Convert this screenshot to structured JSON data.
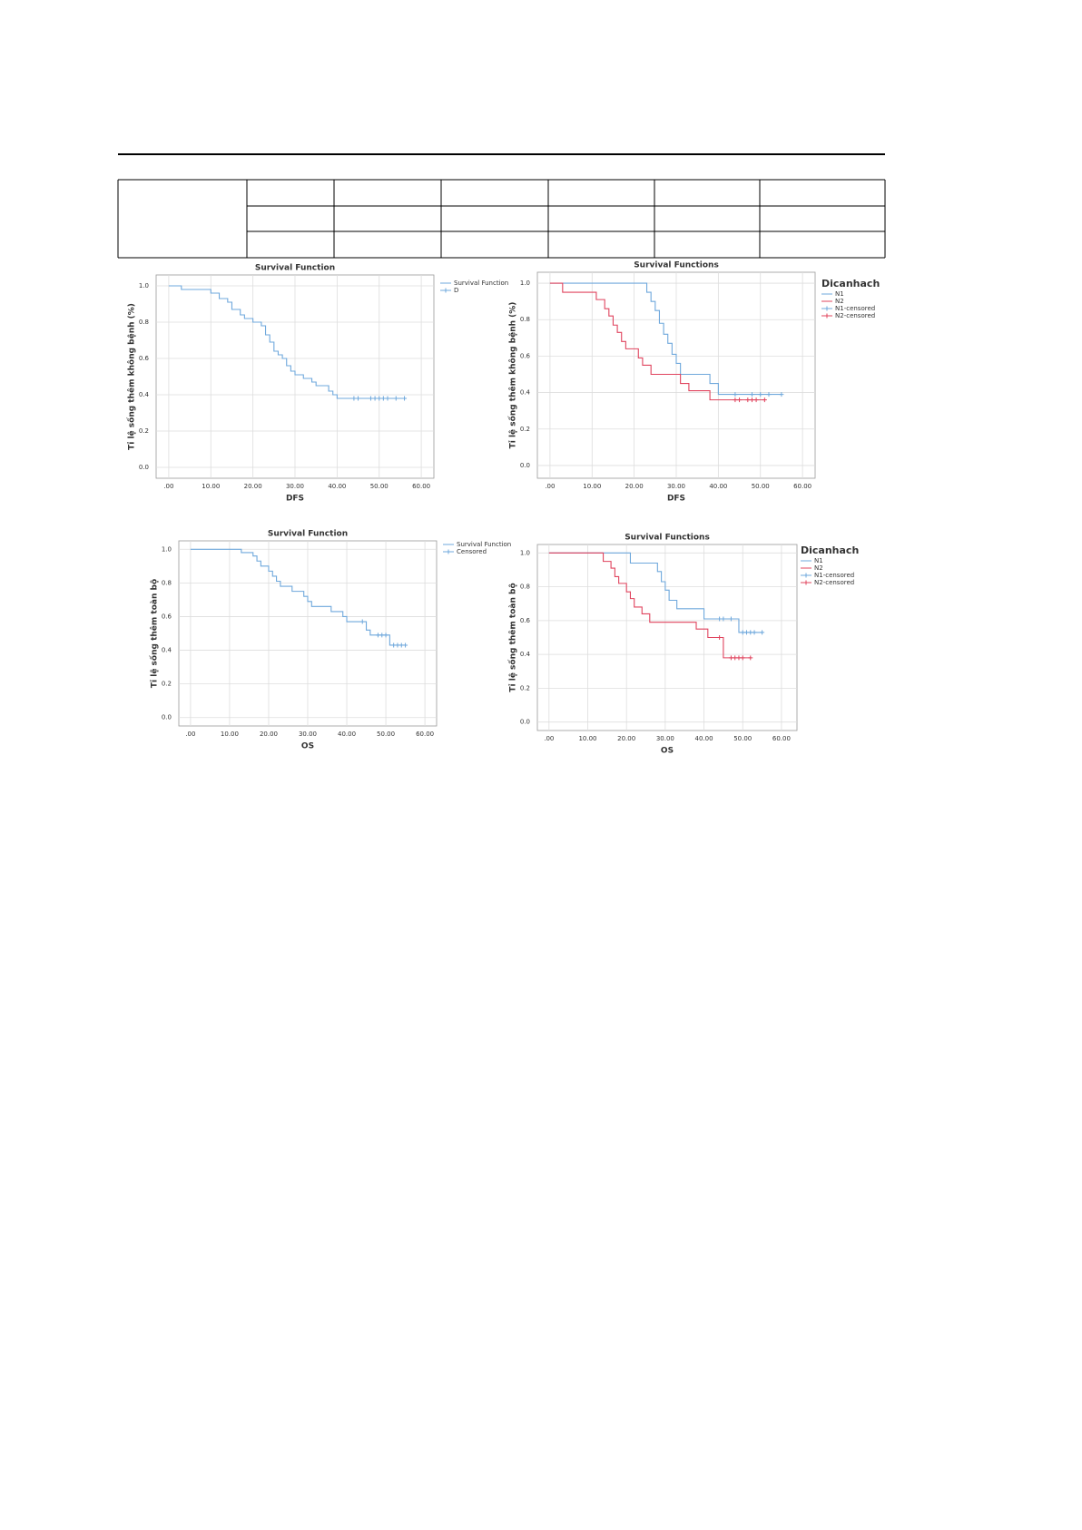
{
  "chart_data": [
    {
      "type": "line",
      "title": "Survival Function",
      "x_label": "DFS",
      "y_label": "Tỉ lệ sống thêm không bệnh (%)",
      "xlim": [
        -3,
        63
      ],
      "ylim": [
        -0.06,
        1.06
      ],
      "grid": true,
      "xticks": [
        {
          "value": 0,
          "label": ".00"
        },
        {
          "value": 10,
          "label": "10.00"
        },
        {
          "value": 20,
          "label": "20.00"
        },
        {
          "value": 30,
          "label": "30.00"
        },
        {
          "value": 40,
          "label": "40.00"
        },
        {
          "value": 50,
          "label": "50.00"
        },
        {
          "value": 60,
          "label": "60.00"
        }
      ],
      "yticks": [
        {
          "value": 0,
          "label": "0.0"
        },
        0.2,
        0.4,
        0.6,
        0.8,
        {
          "value": 1,
          "label": "1.0"
        }
      ],
      "series": [
        {
          "name": "Survival Function",
          "color": "#6fa8dc",
          "style": "step",
          "x": [
            0,
            3,
            10,
            12,
            14,
            15,
            17,
            18,
            20,
            22,
            23,
            24,
            25,
            26,
            27,
            28,
            29,
            30,
            32,
            34,
            35,
            38,
            39,
            40,
            56
          ],
          "values": [
            1,
            0.98,
            0.96,
            0.93,
            0.91,
            0.87,
            0.84,
            0.82,
            0.8,
            0.78,
            0.73,
            0.69,
            0.64,
            0.62,
            0.6,
            0.56,
            0.53,
            0.51,
            0.49,
            0.47,
            0.45,
            0.42,
            0.4,
            0.38,
            0.38
          ]
        },
        {
          "name": "D",
          "color": "#6fa8dc",
          "style": "censored",
          "x": [
            44,
            45,
            48,
            49,
            50,
            51,
            52,
            54,
            56
          ],
          "values": [
            0.38,
            0.38,
            0.38,
            0.38,
            0.38,
            0.38,
            0.38,
            0.38,
            0.38
          ]
        }
      ]
    },
    {
      "type": "line",
      "title": "Survival Functions",
      "x_label": "DFS",
      "y_label": "Tỉ lệ sống thêm không bệnh (%)",
      "legend_title": "Dicanhach",
      "xlim": [
        -3,
        63
      ],
      "ylim": [
        -0.07,
        1.06
      ],
      "grid": true,
      "xticks": [
        {
          "value": 0,
          "label": ".00"
        },
        {
          "value": 10,
          "label": "10.00"
        },
        {
          "value": 20,
          "label": "20.00"
        },
        {
          "value": 30,
          "label": "30.00"
        },
        {
          "value": 40,
          "label": "40.00"
        },
        {
          "value": 50,
          "label": "50.00"
        },
        {
          "value": 60,
          "label": "60.00"
        }
      ],
      "yticks": [
        {
          "value": 0,
          "label": "0.0"
        },
        0.2,
        0.4,
        0.6,
        0.8,
        {
          "value": 1,
          "label": "1.0"
        }
      ],
      "series": [
        {
          "name": "N1",
          "color": "#6fa8dc",
          "style": "step",
          "x": [
            0,
            23,
            24,
            25,
            26,
            27,
            28,
            29,
            30,
            31,
            38,
            40,
            55
          ],
          "values": [
            1,
            0.95,
            0.9,
            0.85,
            0.78,
            0.72,
            0.67,
            0.61,
            0.56,
            0.5,
            0.45,
            0.39,
            0.39
          ]
        },
        {
          "name": "N2",
          "color": "#e0445e",
          "style": "step",
          "x": [
            0,
            3,
            11,
            13,
            14,
            15,
            16,
            17,
            18,
            21,
            22,
            24,
            31,
            33,
            38,
            51
          ],
          "values": [
            1,
            0.95,
            0.91,
            0.86,
            0.82,
            0.77,
            0.73,
            0.68,
            0.64,
            0.59,
            0.55,
            0.5,
            0.45,
            0.41,
            0.36,
            0.36
          ]
        },
        {
          "name": "N1-censored",
          "color": "#6fa8dc",
          "style": "censored",
          "x": [
            44,
            48,
            50,
            52,
            55
          ],
          "values": [
            0.39,
            0.39,
            0.39,
            0.39,
            0.39
          ]
        },
        {
          "name": "N2-censored",
          "color": "#e0445e",
          "style": "censored",
          "x": [
            44,
            45,
            47,
            48,
            49,
            51
          ],
          "values": [
            0.36,
            0.36,
            0.36,
            0.36,
            0.36,
            0.36
          ]
        }
      ]
    },
    {
      "type": "line",
      "title": "Survival Function",
      "x_label": "OS",
      "y_label": "Tỉ lệ sống thêm toàn bộ",
      "xlim": [
        -3,
        63
      ],
      "ylim": [
        -0.05,
        1.05
      ],
      "grid": true,
      "xticks": [
        {
          "value": 0,
          "label": ".00"
        },
        {
          "value": 10,
          "label": "10.00"
        },
        {
          "value": 20,
          "label": "20.00"
        },
        {
          "value": 30,
          "label": "30.00"
        },
        {
          "value": 40,
          "label": "40.00"
        },
        {
          "value": 50,
          "label": "50.00"
        },
        {
          "value": 60,
          "label": "60.00"
        }
      ],
      "yticks": [
        {
          "value": 0,
          "label": "0.0"
        },
        0.2,
        0.4,
        0.6,
        0.8,
        {
          "value": 1,
          "label": "1.0"
        }
      ],
      "series": [
        {
          "name": "Survival Function",
          "color": "#6fa8dc",
          "style": "step",
          "x": [
            0,
            13,
            16,
            17,
            18,
            20,
            21,
            22,
            23,
            26,
            29,
            30,
            31,
            36,
            39,
            40,
            45,
            46,
            51,
            55
          ],
          "values": [
            1,
            0.98,
            0.96,
            0.93,
            0.9,
            0.87,
            0.84,
            0.81,
            0.78,
            0.75,
            0.72,
            0.69,
            0.66,
            0.63,
            0.6,
            0.57,
            0.52,
            0.49,
            0.43,
            0.43
          ]
        },
        {
          "name": "Censored",
          "color": "#6fa8dc",
          "style": "censored",
          "x": [
            44,
            48,
            49,
            50,
            52,
            53,
            54,
            55
          ],
          "values": [
            0.57,
            0.49,
            0.49,
            0.49,
            0.43,
            0.43,
            0.43,
            0.43
          ]
        }
      ]
    },
    {
      "type": "line",
      "title": "Survival Functions",
      "x_label": "OS",
      "y_label": "Tỉ lệ sống thêm toàn bộ",
      "legend_title": "Dicanhach",
      "xlim": [
        -3,
        64
      ],
      "ylim": [
        -0.05,
        1.05
      ],
      "grid": true,
      "xticks": [
        {
          "value": 0,
          "label": ".00"
        },
        {
          "value": 10,
          "label": "10.00"
        },
        {
          "value": 20,
          "label": "20.00"
        },
        {
          "value": 30,
          "label": "30.00"
        },
        {
          "value": 40,
          "label": "40.00"
        },
        {
          "value": 50,
          "label": "50.00"
        },
        {
          "value": 60,
          "label": "60.00"
        }
      ],
      "yticks": [
        {
          "value": 0,
          "label": "0.0"
        },
        0.2,
        0.4,
        0.6,
        0.8,
        {
          "value": 1,
          "label": "1.0"
        }
      ],
      "series": [
        {
          "name": "N1",
          "color": "#6fa8dc",
          "style": "step",
          "x": [
            0,
            21,
            28,
            29,
            30,
            31,
            33,
            40,
            49,
            55
          ],
          "values": [
            1,
            0.94,
            0.89,
            0.83,
            0.78,
            0.72,
            0.67,
            0.61,
            0.53,
            0.53
          ]
        },
        {
          "name": "N2",
          "color": "#e0445e",
          "style": "step",
          "x": [
            0,
            14,
            16,
            17,
            18,
            20,
            21,
            22,
            24,
            26,
            38,
            41,
            45,
            52
          ],
          "values": [
            1,
            0.95,
            0.91,
            0.86,
            0.82,
            0.77,
            0.73,
            0.68,
            0.64,
            0.59,
            0.55,
            0.5,
            0.38,
            0.38
          ]
        },
        {
          "name": "N1-censored",
          "color": "#6fa8dc",
          "style": "censored",
          "x": [
            44,
            45,
            47,
            50,
            51,
            52,
            53,
            55
          ],
          "values": [
            0.61,
            0.61,
            0.61,
            0.53,
            0.53,
            0.53,
            0.53,
            0.53
          ]
        },
        {
          "name": "N2-censored",
          "color": "#e0445e",
          "style": "censored",
          "x": [
            44,
            47,
            48,
            49,
            50,
            52
          ],
          "values": [
            0.5,
            0.38,
            0.38,
            0.38,
            0.38,
            0.38
          ]
        }
      ]
    }
  ]
}
